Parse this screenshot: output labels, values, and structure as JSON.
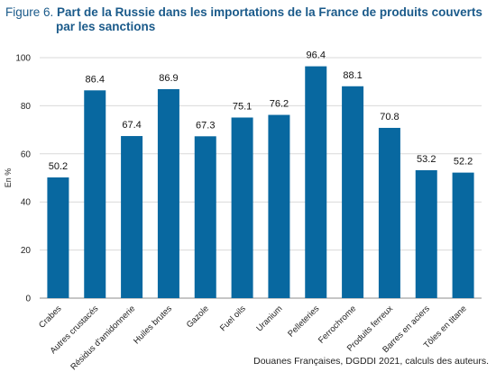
{
  "figure": {
    "label": "Figure 6.",
    "title_line1": "Part de la Russie dans les importations de la France de produits couverts",
    "title_line2": "par les sanctions"
  },
  "source": "Douanes Françaises, DGDDI 2021, calculs des auteurs.",
  "colors": {
    "bar": "#0868a0",
    "grid": "#d9d9d9",
    "title": "#1a5a8a"
  },
  "chart_data": {
    "type": "bar",
    "ylabel": "En %",
    "xlabel": "",
    "ylim": [
      0,
      100
    ],
    "yticks": [
      0,
      20,
      40,
      60,
      80,
      100
    ],
    "grid": true,
    "categories": [
      "Crabes",
      "Autres crustacés",
      "Résidus d'amidonnerie",
      "Huiles brutes",
      "Gazole",
      "Fuel oils",
      "Uranium",
      "Pelleteries",
      "Ferrochrome",
      "Produits ferreux",
      "Barres en aciers",
      "Tôles en titane"
    ],
    "values": [
      50.2,
      86.4,
      67.4,
      86.9,
      67.3,
      75.1,
      76.2,
      96.4,
      88.1,
      70.8,
      53.2,
      52.2
    ],
    "data_labels": [
      "50.2",
      "86.4",
      "67.4",
      "86.9",
      "67.3",
      "75.1",
      "76.2",
      "96.4",
      "88.1",
      "70.8",
      "53.2",
      "52.2"
    ]
  }
}
